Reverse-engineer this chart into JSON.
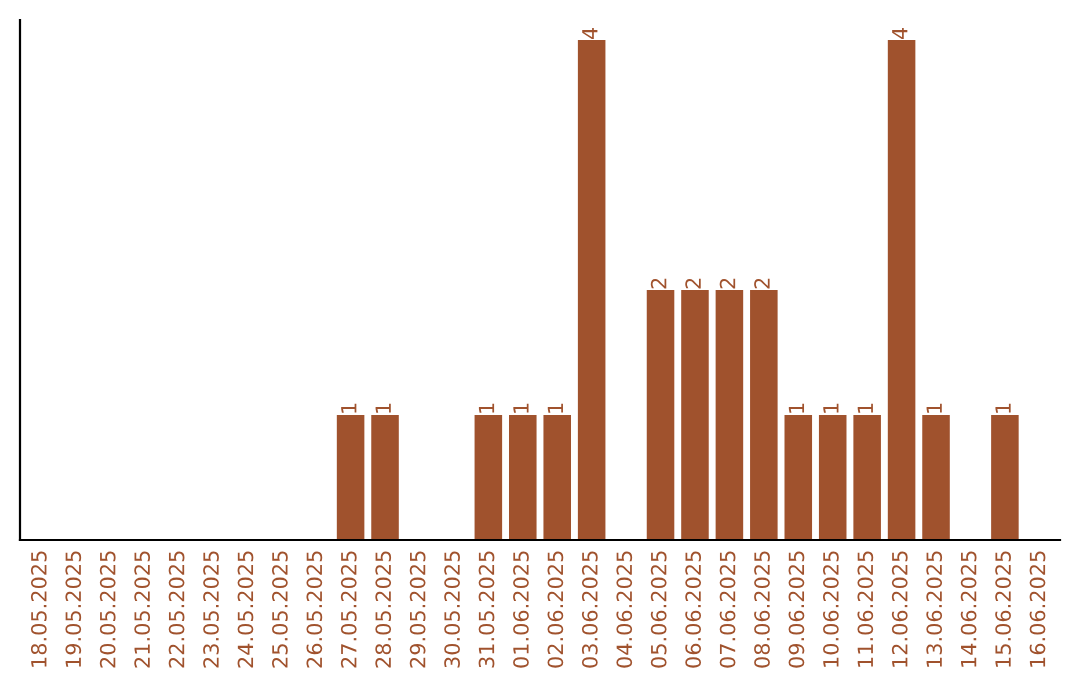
{
  "chart_data": {
    "type": "bar",
    "categories": [
      "18.05.2025",
      "19.05.2025",
      "20.05.2025",
      "21.05.2025",
      "22.05.2025",
      "23.05.2025",
      "24.05.2025",
      "25.05.2025",
      "26.05.2025",
      "27.05.2025",
      "28.05.2025",
      "29.05.2025",
      "30.05.2025",
      "31.05.2025",
      "01.06.2025",
      "02.06.2025",
      "03.06.2025",
      "04.06.2025",
      "05.06.2025",
      "06.06.2025",
      "07.06.2025",
      "08.06.2025",
      "09.06.2025",
      "10.06.2025",
      "11.06.2025",
      "12.06.2025",
      "13.06.2025",
      "14.06.2025",
      "15.06.2025",
      "16.06.2025"
    ],
    "values": [
      0,
      0,
      0,
      0,
      0,
      0,
      0,
      0,
      0,
      1,
      1,
      0,
      0,
      1,
      1,
      1,
      4,
      0,
      2,
      2,
      2,
      2,
      1,
      1,
      1,
      4,
      1,
      0,
      1,
      0
    ],
    "value_labels": [
      null,
      null,
      null,
      null,
      null,
      null,
      null,
      null,
      null,
      "1",
      "1",
      null,
      null,
      "1",
      "1",
      "1",
      "4",
      null,
      "2",
      "2",
      "2",
      "2",
      "1",
      "1",
      "1",
      "4",
      "1",
      null,
      "1",
      null
    ],
    "color": "#a0522d",
    "tick_labels": "x",
    "grid": false
  }
}
